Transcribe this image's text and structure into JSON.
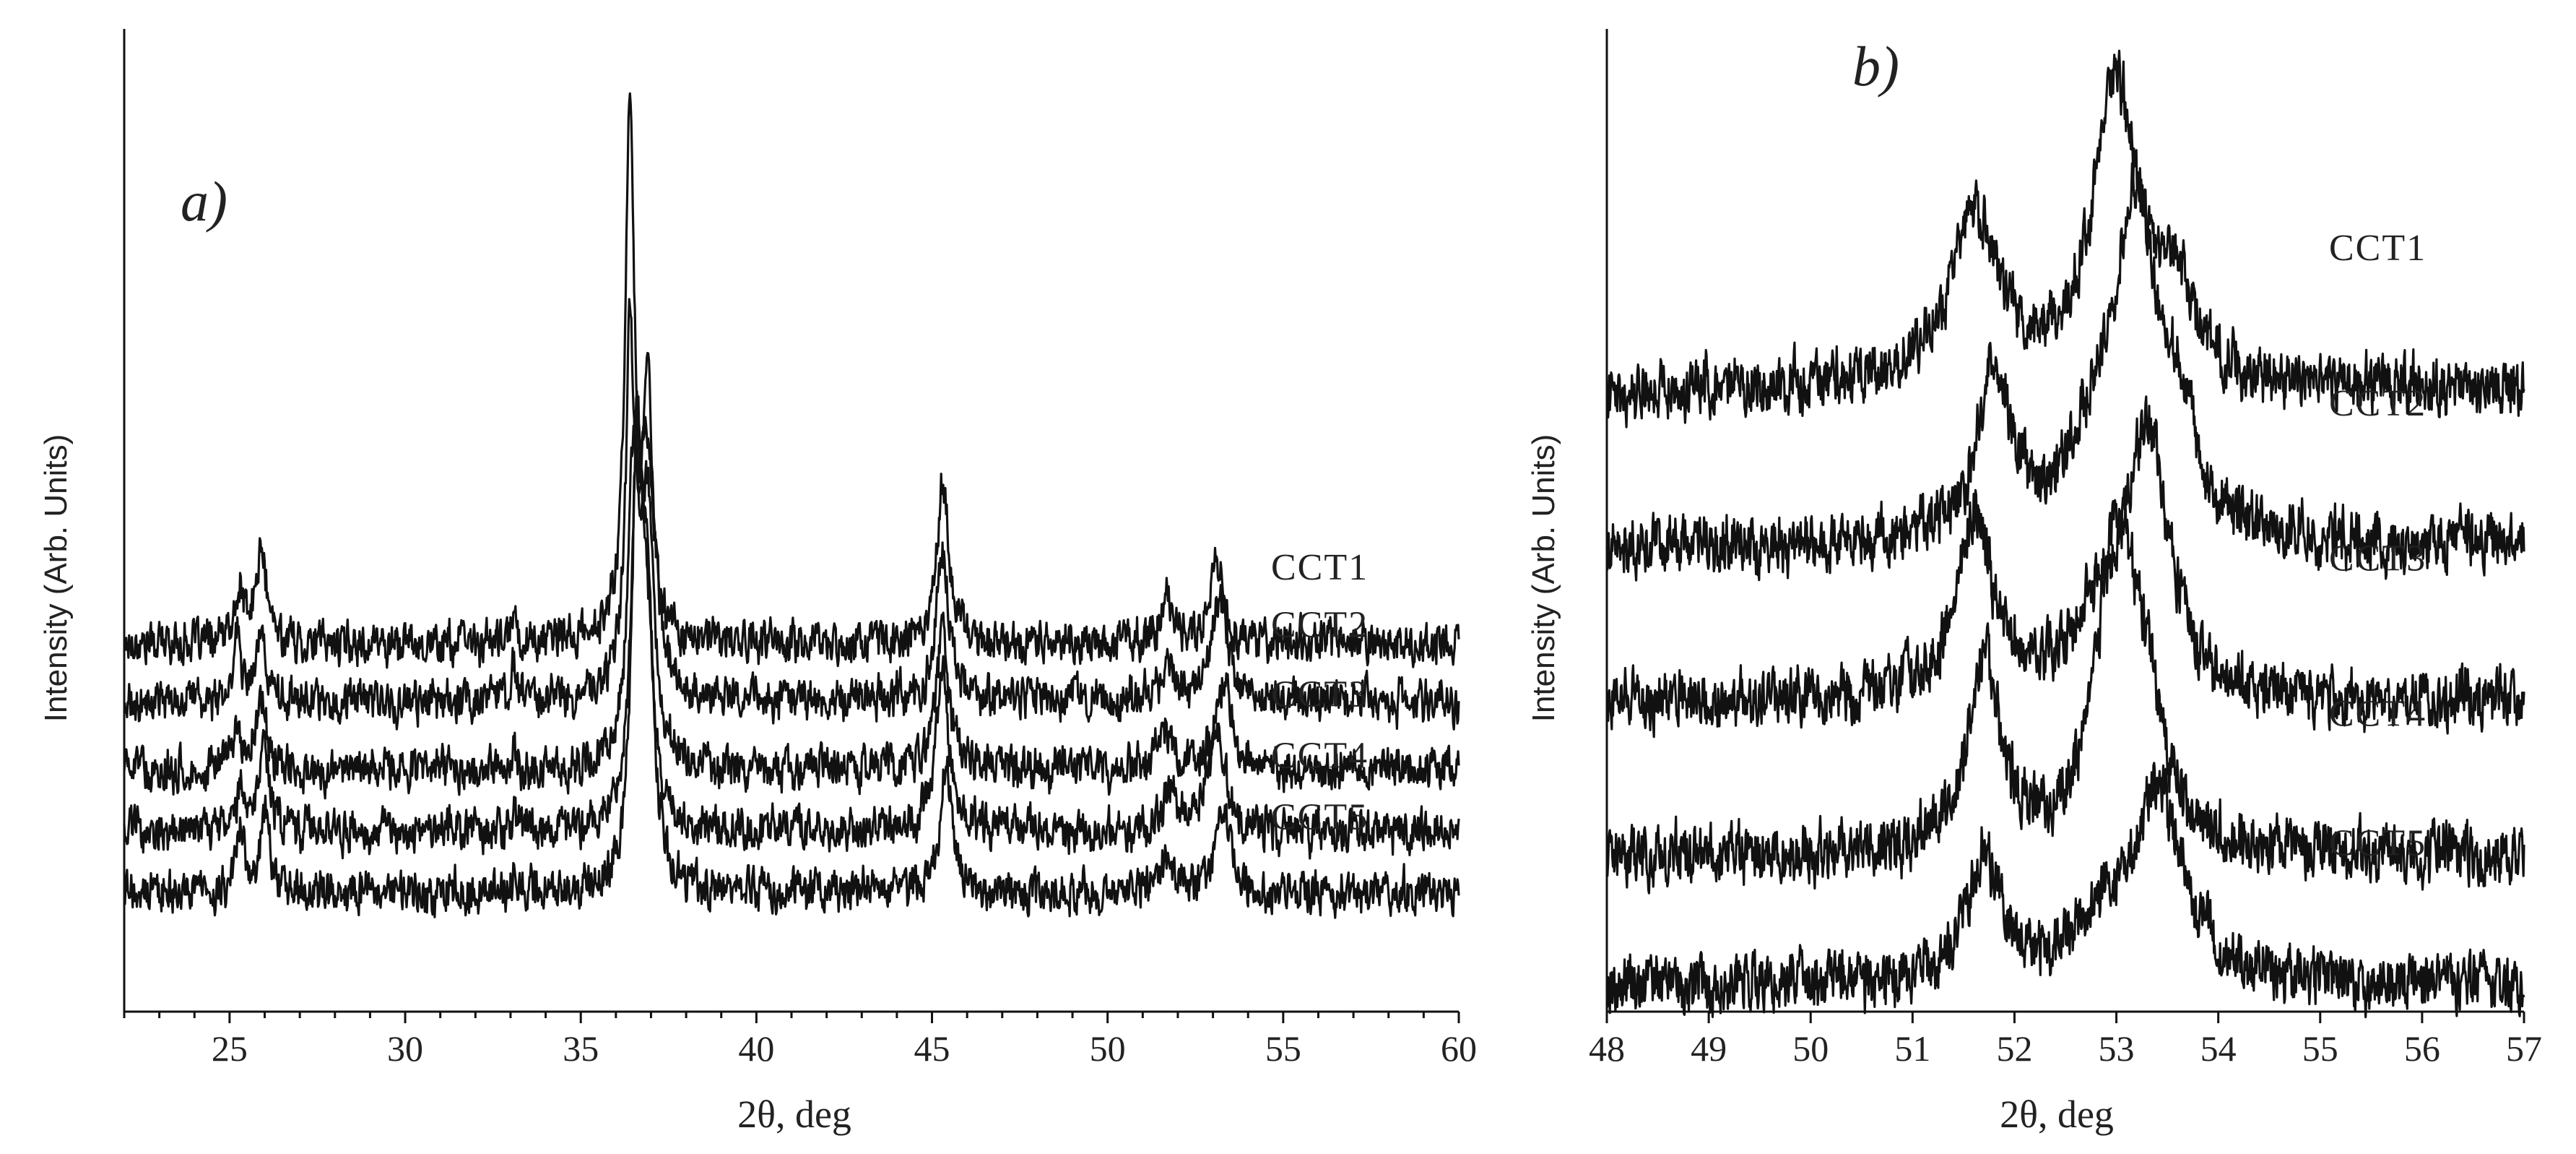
{
  "chart_data": [
    {
      "type": "line",
      "panel_label": "a)",
      "xlabel": "2θ, deg",
      "ylabel": "Intensity (Arb. Units)",
      "xlim": [
        22,
        60
      ],
      "xticks": [
        25,
        30,
        35,
        40,
        45,
        50,
        55,
        60
      ],
      "y_axis_ticks_shown": false,
      "grid": false,
      "noise": 0.5,
      "series": [
        {
          "name": "CCT1",
          "baseline": 9.0,
          "offset": 0.15,
          "peaks": [
            [
              25.3,
              1.2,
              0.15
            ],
            [
              25.9,
              2.2,
              0.18
            ],
            [
              33.1,
              0.9,
              0.06
            ],
            [
              36.4,
              12.8,
              0.16
            ],
            [
              36.9,
              4.0,
              0.2
            ],
            [
              45.3,
              3.8,
              0.22
            ],
            [
              51.7,
              1.0,
              0.2
            ],
            [
              53.1,
              2.0,
              0.24
            ]
          ]
        },
        {
          "name": "CCT2",
          "baseline": 7.6,
          "offset": 0.05,
          "peaks": [
            [
              25.2,
              1.7,
              0.12
            ],
            [
              25.9,
              1.6,
              0.18
            ],
            [
              33.1,
              1.0,
              0.06
            ],
            [
              36.4,
              8.3,
              0.14
            ],
            [
              36.9,
              7.6,
              0.22
            ],
            [
              45.3,
              3.6,
              0.22
            ],
            [
              51.7,
              1.0,
              0.2
            ],
            [
              53.2,
              2.5,
              0.26
            ]
          ]
        },
        {
          "name": "CCT3",
          "baseline": 5.9,
          "offset": 0.05,
          "peaks": [
            [
              25.2,
              0.9,
              0.15
            ],
            [
              25.9,
              1.8,
              0.18
            ],
            [
              33.1,
              0.4,
              0.06
            ],
            [
              36.5,
              7.0,
              0.18
            ],
            [
              36.9,
              6.0,
              0.22
            ],
            [
              45.3,
              3.4,
              0.22
            ],
            [
              51.6,
              0.9,
              0.2
            ],
            [
              53.3,
              2.0,
              0.28
            ]
          ]
        },
        {
          "name": "CCT4",
          "baseline": 4.4,
          "offset": 0.05,
          "peaks": [
            [
              25.3,
              1.0,
              0.15
            ],
            [
              26.0,
              2.0,
              0.18
            ],
            [
              33.1,
              0.5,
              0.06
            ],
            [
              36.6,
              8.4,
              0.2
            ],
            [
              36.9,
              4.0,
              0.2
            ],
            [
              45.3,
              3.8,
              0.22
            ],
            [
              51.8,
              1.1,
              0.2
            ],
            [
              53.1,
              2.6,
              0.26
            ]
          ]
        },
        {
          "name": "CCT5",
          "baseline": 2.9,
          "offset": 0.0,
          "peaks": [
            [
              25.3,
              1.4,
              0.14
            ],
            [
              26.0,
              2.0,
              0.16
            ],
            [
              33.1,
              0.5,
              0.06
            ],
            [
              36.6,
              10.0,
              0.18
            ],
            [
              36.9,
              6.0,
              0.2
            ],
            [
              45.4,
              3.0,
              0.2
            ],
            [
              51.7,
              0.8,
              0.2
            ],
            [
              53.3,
              2.1,
              0.24
            ]
          ]
        }
      ]
    },
    {
      "type": "line",
      "panel_label": "b)",
      "xlabel": "2θ, deg",
      "ylabel": "Intensity (Arb. Units)",
      "xlim": [
        48,
        57
      ],
      "xticks": [
        48,
        49,
        50,
        51,
        52,
        53,
        54,
        55,
        56,
        57
      ],
      "y_axis_ticks_shown": false,
      "grid": false,
      "noise": 0.55,
      "series": [
        {
          "name": "CCT1",
          "baseline": 12.0,
          "offset": 0.2,
          "peaks": [
            [
              51.6,
              3.3,
              0.3
            ],
            [
              53.0,
              5.8,
              0.28
            ],
            [
              53.6,
              1.6,
              0.2
            ]
          ]
        },
        {
          "name": "CCT2",
          "baseline": 9.0,
          "offset": 0.2,
          "peaks": [
            [
              51.8,
              3.2,
              0.2
            ],
            [
              52.8,
              2.0,
              0.3
            ],
            [
              53.2,
              5.8,
              0.22
            ],
            [
              53.6,
              2.2,
              0.2
            ]
          ]
        },
        {
          "name": "CCT3",
          "baseline": 6.0,
          "offset": 0.2,
          "peaks": [
            [
              51.6,
              3.4,
              0.22
            ],
            [
              52.8,
              1.2,
              0.3
            ],
            [
              53.3,
              5.0,
              0.26
            ]
          ]
        },
        {
          "name": "CCT4",
          "baseline": 3.0,
          "offset": 0.2,
          "peaks": [
            [
              51.7,
              3.6,
              0.2
            ],
            [
              53.0,
              6.0,
              0.24
            ],
            [
              53.3,
              2.0,
              0.2
            ]
          ]
        },
        {
          "name": "CCT5",
          "baseline": 0.5,
          "offset": 0.2,
          "peaks": [
            [
              51.7,
              2.4,
              0.2
            ],
            [
              52.8,
              0.8,
              0.3
            ],
            [
              53.4,
              3.8,
              0.3
            ]
          ]
        }
      ]
    }
  ]
}
